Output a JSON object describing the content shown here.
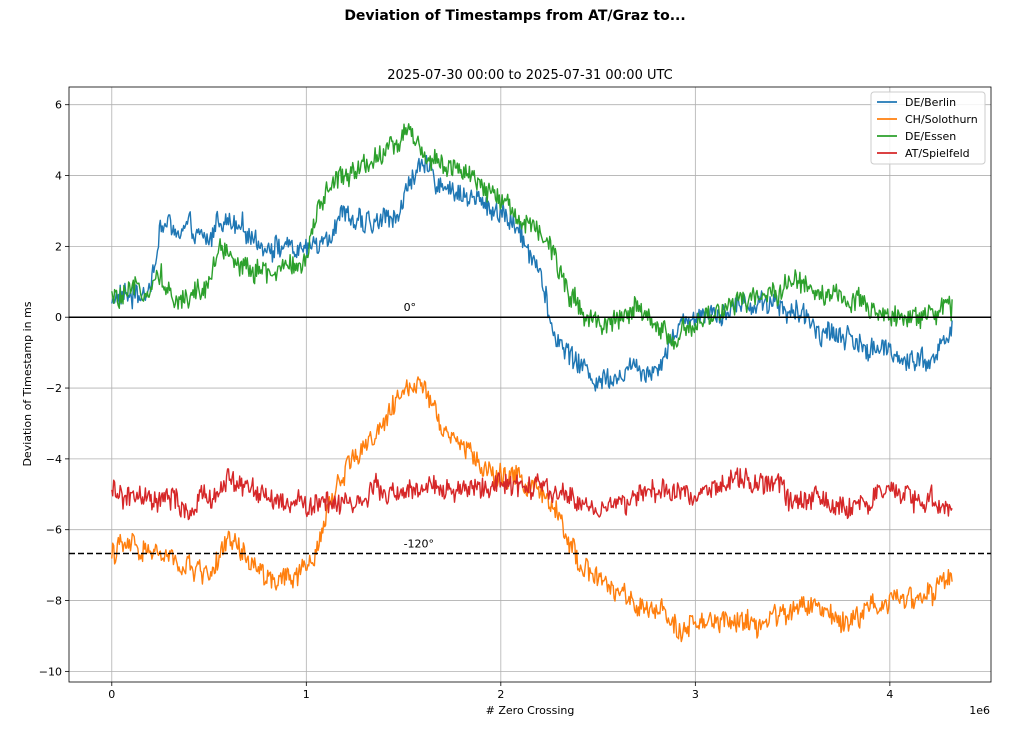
{
  "chart_data": {
    "type": "line",
    "suptitle": "Deviation of Timestamps from AT/Graz to...",
    "title": "2025-07-30 00:00 to 2025-07-31 00:00 UTC",
    "xlabel": "# Zero Crossing",
    "ylabel": "Deviation of Timestamp in ms",
    "x_offset_text": "1e6",
    "xlim": [
      -0.22,
      4.52
    ],
    "ylim": [
      -10.3,
      6.5
    ],
    "xticks": [
      0,
      1,
      2,
      3,
      4
    ],
    "xtick_labels": [
      "0",
      "1",
      "2",
      "3",
      "4"
    ],
    "yticks": [
      -10,
      -8,
      -6,
      -4,
      -2,
      0,
      2,
      4,
      6
    ],
    "ytick_labels": [
      "−10",
      "−8",
      "−6",
      "−4",
      "−2",
      "0",
      "2",
      "4",
      "6"
    ],
    "grid": true,
    "legend_position": "top-right",
    "reference_lines": [
      {
        "y": 0,
        "style": "solid",
        "color": "#000000",
        "label": "0°",
        "label_x": 1.5
      },
      {
        "y": -6.67,
        "style": "dashed",
        "color": "#000000",
        "label": "-120°",
        "label_x": 1.5
      }
    ],
    "series": [
      {
        "name": "DE/Berlin",
        "color": "#1f77b4",
        "x": [
          0,
          0.1,
          0.2,
          0.25,
          0.3,
          0.35,
          0.4,
          0.5,
          0.55,
          0.6,
          0.7,
          0.8,
          0.9,
          1.0,
          1.1,
          1.2,
          1.3,
          1.4,
          1.5,
          1.55,
          1.6,
          1.7,
          1.8,
          1.9,
          2.0,
          2.1,
          2.2,
          2.25,
          2.3,
          2.4,
          2.5,
          2.6,
          2.7,
          2.8,
          2.9,
          3.0,
          3.1,
          3.2,
          3.3,
          3.4,
          3.5,
          3.6,
          3.7,
          3.8,
          3.9,
          4.0,
          4.1,
          4.2,
          4.3,
          4.32
        ],
        "y": [
          0.5,
          0.6,
          0.9,
          2.5,
          2.6,
          2.3,
          2.4,
          2.0,
          2.9,
          2.6,
          2.3,
          2.1,
          2.0,
          1.8,
          2.4,
          3.0,
          2.5,
          2.7,
          3.2,
          4.2,
          4.1,
          3.8,
          3.5,
          3.2,
          3.0,
          2.4,
          1.5,
          -0.2,
          -0.7,
          -1.3,
          -1.8,
          -1.5,
          -1.4,
          -1.4,
          -0.3,
          0.1,
          0.2,
          0.3,
          0.4,
          0.5,
          0.1,
          -0.2,
          -0.4,
          -0.6,
          -0.9,
          -1.0,
          -1.1,
          -1.2,
          -0.6,
          -0.4
        ]
      },
      {
        "name": "CH/Solothurn",
        "color": "#ff7f0e",
        "x": [
          0,
          0.1,
          0.2,
          0.3,
          0.4,
          0.5,
          0.6,
          0.7,
          0.8,
          0.9,
          1.0,
          1.05,
          1.1,
          1.2,
          1.3,
          1.4,
          1.5,
          1.55,
          1.6,
          1.7,
          1.8,
          1.9,
          2.0,
          2.1,
          2.2,
          2.3,
          2.4,
          2.5,
          2.6,
          2.7,
          2.8,
          2.9,
          3.0,
          3.1,
          3.2,
          3.3,
          3.4,
          3.5,
          3.6,
          3.7,
          3.8,
          3.9,
          4.0,
          4.1,
          4.2,
          4.3,
          4.32
        ],
        "y": [
          -6.6,
          -6.5,
          -6.6,
          -6.9,
          -7.1,
          -7.2,
          -6.4,
          -6.9,
          -7.4,
          -7.5,
          -7.2,
          -6.7,
          -5.5,
          -4.2,
          -3.6,
          -3.0,
          -2.2,
          -1.8,
          -1.7,
          -3.0,
          -3.6,
          -4.2,
          -4.6,
          -4.5,
          -5.0,
          -5.8,
          -6.8,
          -7.4,
          -7.8,
          -8.2,
          -8.5,
          -8.6,
          -8.7,
          -8.7,
          -8.6,
          -8.7,
          -8.5,
          -8.3,
          -8.1,
          -8.4,
          -8.6,
          -8.1,
          -7.9,
          -7.9,
          -7.8,
          -7.5,
          -7.6
        ]
      },
      {
        "name": "DE/Essen",
        "color": "#2ca02c",
        "x": [
          0,
          0.1,
          0.2,
          0.25,
          0.3,
          0.35,
          0.4,
          0.5,
          0.55,
          0.6,
          0.7,
          0.8,
          0.9,
          1.0,
          1.1,
          1.2,
          1.3,
          1.4,
          1.5,
          1.55,
          1.6,
          1.7,
          1.8,
          1.9,
          2.0,
          2.1,
          2.2,
          2.3,
          2.4,
          2.5,
          2.6,
          2.7,
          2.8,
          2.9,
          3.0,
          3.1,
          3.2,
          3.3,
          3.4,
          3.5,
          3.6,
          3.7,
          3.8,
          3.9,
          4.0,
          4.1,
          4.2,
          4.3,
          4.32
        ],
        "y": [
          0.5,
          0.5,
          1.0,
          1.4,
          0.6,
          0.4,
          0.7,
          0.8,
          2.0,
          1.7,
          1.5,
          1.2,
          1.4,
          1.7,
          3.5,
          4.1,
          4.4,
          4.7,
          5.1,
          5.3,
          4.6,
          4.4,
          4.0,
          3.6,
          3.3,
          2.9,
          2.5,
          1.3,
          0.3,
          -0.1,
          0.0,
          0.1,
          -0.3,
          -0.6,
          -0.4,
          0.1,
          0.3,
          0.5,
          0.7,
          1.1,
          0.8,
          0.7,
          0.4,
          0.1,
          0.0,
          0.1,
          0.2,
          0.2,
          0.2
        ]
      },
      {
        "name": "AT/Spielfeld",
        "color": "#d62728",
        "x": [
          0,
          0.1,
          0.2,
          0.3,
          0.4,
          0.5,
          0.6,
          0.7,
          0.8,
          0.9,
          1.0,
          1.1,
          1.2,
          1.3,
          1.4,
          1.5,
          1.6,
          1.7,
          1.8,
          1.9,
          2.0,
          2.1,
          2.2,
          2.3,
          2.4,
          2.5,
          2.6,
          2.7,
          2.8,
          2.9,
          3.0,
          3.1,
          3.2,
          3.3,
          3.4,
          3.5,
          3.6,
          3.7,
          3.8,
          3.9,
          4.0,
          4.1,
          4.2,
          4.3,
          4.32
        ],
        "y": [
          -5.0,
          -5.1,
          -5.3,
          -5.2,
          -5.5,
          -5.1,
          -4.6,
          -4.8,
          -5.2,
          -5.3,
          -5.3,
          -5.2,
          -5.2,
          -5.1,
          -4.9,
          -5.0,
          -4.9,
          -4.9,
          -4.9,
          -4.8,
          -4.8,
          -4.8,
          -4.9,
          -5.0,
          -5.2,
          -5.4,
          -5.3,
          -5.1,
          -5.0,
          -5.0,
          -4.9,
          -4.7,
          -4.8,
          -4.6,
          -4.7,
          -5.1,
          -5.2,
          -5.3,
          -5.2,
          -5.2,
          -5.1,
          -5.1,
          -5.2,
          -5.3,
          -5.3
        ]
      }
    ]
  }
}
